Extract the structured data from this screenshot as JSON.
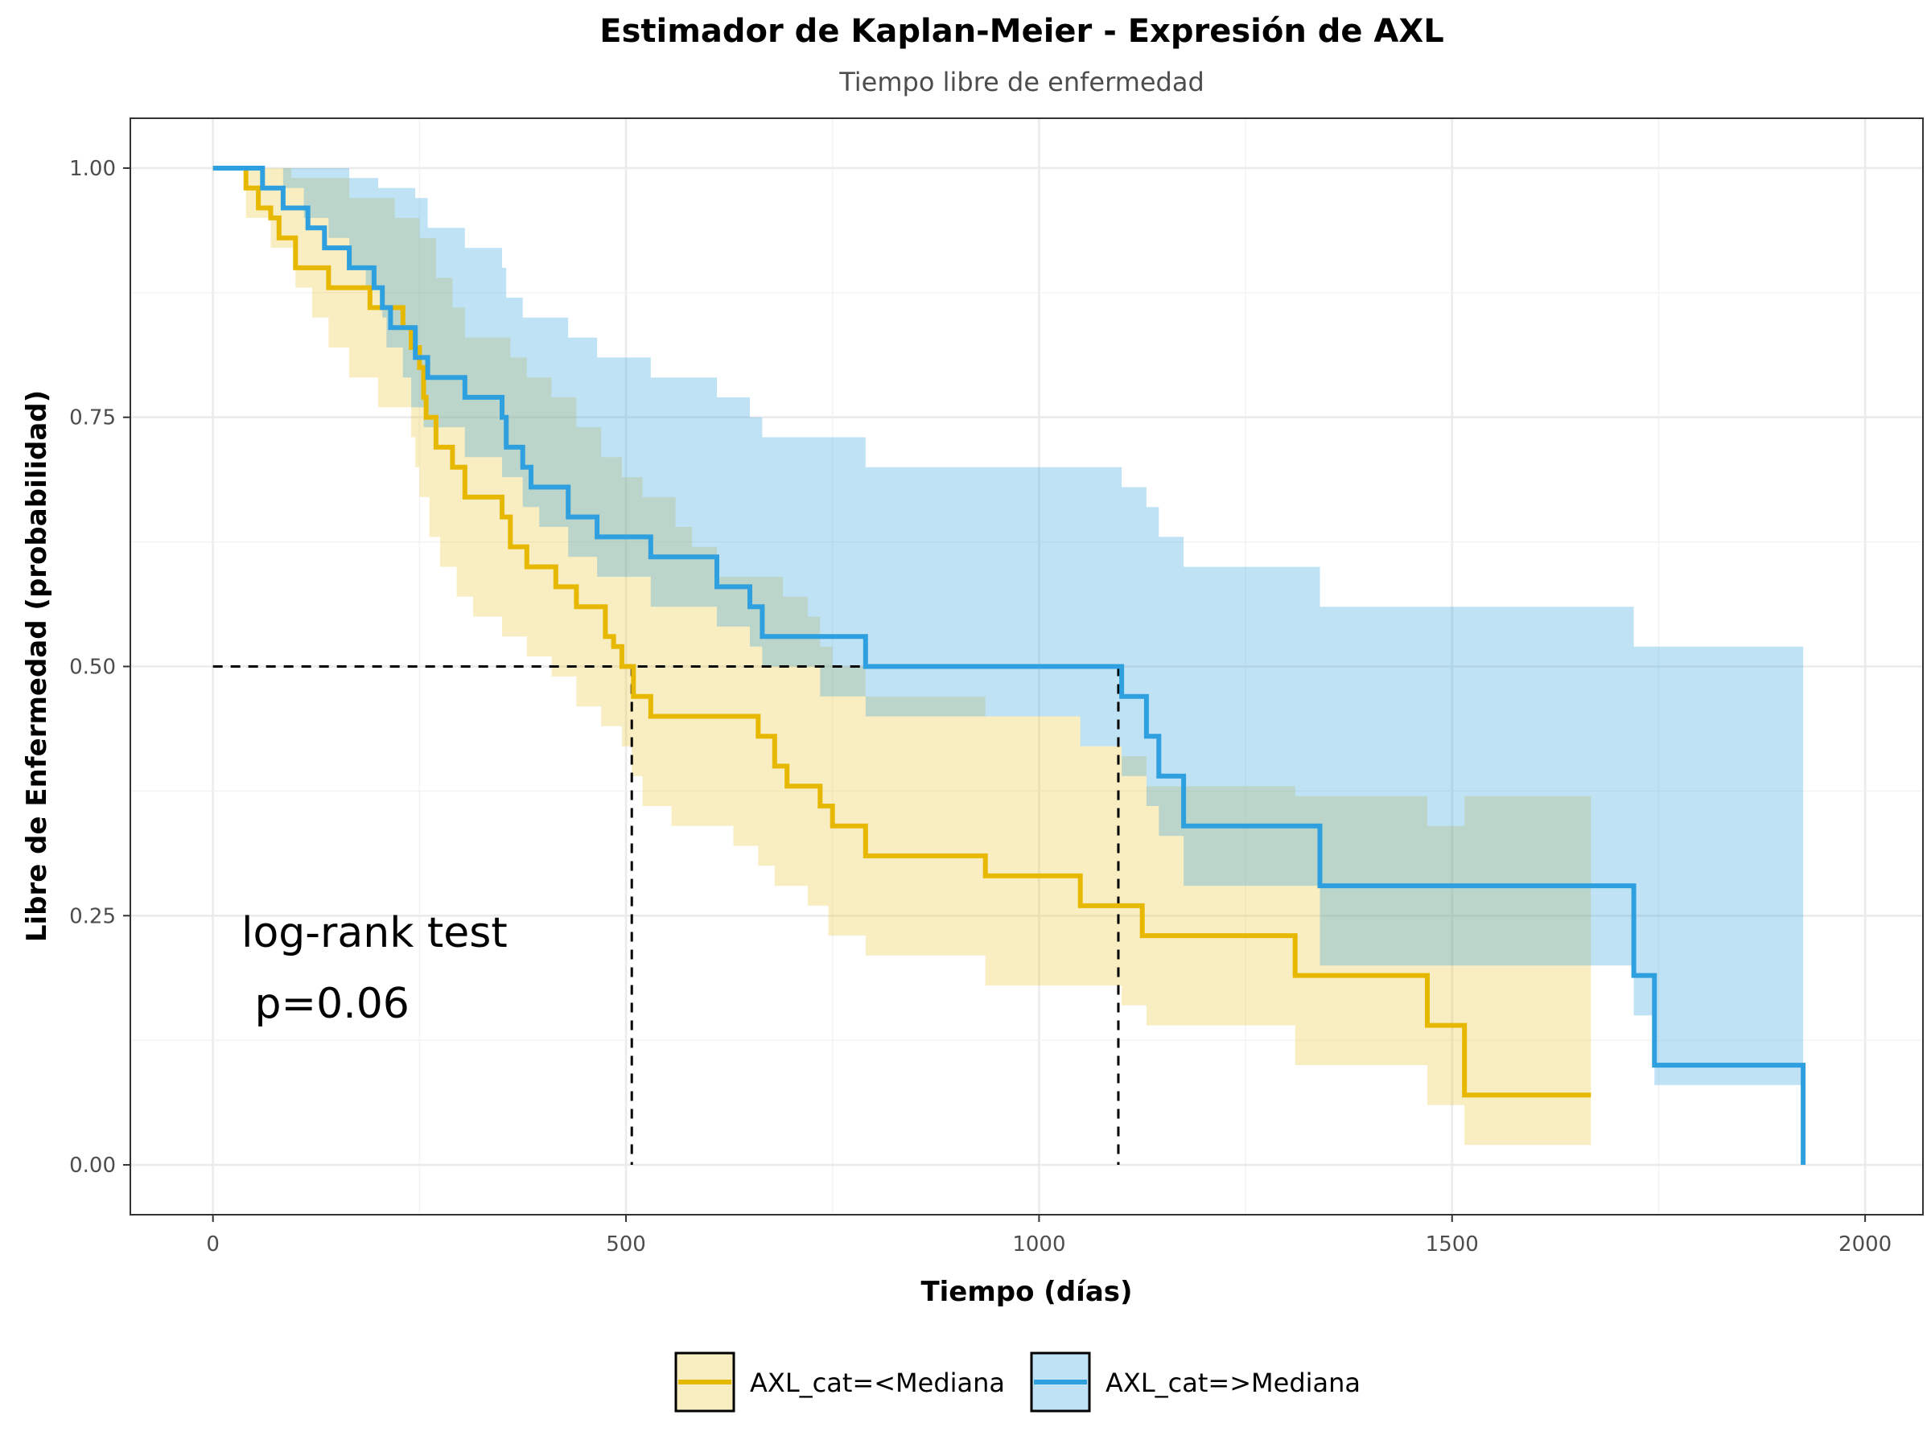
{
  "chart_data": {
    "type": "line",
    "title": "Estimador de Kaplan-Meier - Expresión de AXL",
    "subtitle": "Tiempo libre de enfermedad",
    "xlabel": "Tiempo (días)",
    "ylabel": "Libre de Enfermedad (probabilidad)",
    "xlim": [
      -100,
      2070
    ],
    "ylim": [
      -0.05,
      1.05
    ],
    "xticks": [
      0,
      500,
      1000,
      1500,
      2000
    ],
    "xtick_labels": [
      "0",
      "500",
      "1000",
      "1500",
      "2000"
    ],
    "yticks": [
      0,
      0.25,
      0.5,
      0.75,
      1.0
    ],
    "ytick_labels": [
      "0.00",
      "0.25",
      "0.50",
      "0.75",
      "1.00"
    ],
    "grid": true,
    "legend_position": "bottom",
    "annotation": [
      "log-rank test",
      " p=0.06"
    ],
    "median_lines": [
      {
        "x": 507,
        "y": 0.5
      },
      {
        "x": 1096,
        "y": 0.5
      }
    ],
    "series": [
      {
        "name": "AXL_cat=<Mediana",
        "color": "#E7B800",
        "band_color": "#EAC434",
        "step": [
          [
            0,
            1.0
          ],
          [
            40,
            0.98
          ],
          [
            55,
            0.96
          ],
          [
            70,
            0.95
          ],
          [
            80,
            0.93
          ],
          [
            100,
            0.9
          ],
          [
            140,
            0.88
          ],
          [
            190,
            0.86
          ],
          [
            230,
            0.84
          ],
          [
            240,
            0.82
          ],
          [
            250,
            0.8
          ],
          [
            255,
            0.77
          ],
          [
            258,
            0.75
          ],
          [
            270,
            0.72
          ],
          [
            290,
            0.7
          ],
          [
            305,
            0.67
          ],
          [
            350,
            0.65
          ],
          [
            360,
            0.62
          ],
          [
            380,
            0.6
          ],
          [
            415,
            0.58
          ],
          [
            440,
            0.56
          ],
          [
            475,
            0.53
          ],
          [
            485,
            0.52
          ],
          [
            495,
            0.5
          ],
          [
            509,
            0.47
          ],
          [
            530,
            0.45
          ],
          [
            660,
            0.43
          ],
          [
            680,
            0.4
          ],
          [
            695,
            0.38
          ],
          [
            735,
            0.36
          ],
          [
            750,
            0.34
          ],
          [
            790,
            0.31
          ],
          [
            935,
            0.29
          ],
          [
            1050,
            0.26
          ],
          [
            1100,
            0.26
          ],
          [
            1125,
            0.23
          ],
          [
            1310,
            0.19
          ],
          [
            1470,
            0.14
          ],
          [
            1515,
            0.07
          ],
          [
            1668,
            0.07
          ]
        ],
        "lower": [
          [
            0,
            1.0
          ],
          [
            40,
            0.95
          ],
          [
            70,
            0.92
          ],
          [
            100,
            0.88
          ],
          [
            120,
            0.85
          ],
          [
            140,
            0.82
          ],
          [
            165,
            0.79
          ],
          [
            200,
            0.76
          ],
          [
            240,
            0.73
          ],
          [
            245,
            0.7
          ],
          [
            250,
            0.67
          ],
          [
            262,
            0.63
          ],
          [
            275,
            0.6
          ],
          [
            295,
            0.57
          ],
          [
            315,
            0.55
          ],
          [
            350,
            0.53
          ],
          [
            380,
            0.51
          ],
          [
            410,
            0.49
          ],
          [
            440,
            0.46
          ],
          [
            470,
            0.44
          ],
          [
            495,
            0.42
          ],
          [
            507,
            0.39
          ],
          [
            520,
            0.36
          ],
          [
            555,
            0.34
          ],
          [
            630,
            0.32
          ],
          [
            660,
            0.3
          ],
          [
            680,
            0.28
          ],
          [
            720,
            0.26
          ],
          [
            745,
            0.23
          ],
          [
            790,
            0.21
          ],
          [
            935,
            0.18
          ],
          [
            1100,
            0.16
          ],
          [
            1130,
            0.14
          ],
          [
            1310,
            0.1
          ],
          [
            1470,
            0.06
          ],
          [
            1515,
            0.02
          ],
          [
            1668,
            0.02
          ]
        ],
        "upper": [
          [
            0,
            1.0
          ],
          [
            95,
            0.99
          ],
          [
            165,
            0.97
          ],
          [
            220,
            0.95
          ],
          [
            250,
            0.93
          ],
          [
            270,
            0.89
          ],
          [
            290,
            0.86
          ],
          [
            305,
            0.83
          ],
          [
            360,
            0.81
          ],
          [
            380,
            0.79
          ],
          [
            410,
            0.77
          ],
          [
            440,
            0.74
          ],
          [
            470,
            0.71
          ],
          [
            495,
            0.69
          ],
          [
            520,
            0.67
          ],
          [
            560,
            0.64
          ],
          [
            580,
            0.62
          ],
          [
            610,
            0.59
          ],
          [
            690,
            0.57
          ],
          [
            720,
            0.55
          ],
          [
            735,
            0.52
          ],
          [
            750,
            0.5
          ],
          [
            790,
            0.47
          ],
          [
            935,
            0.45
          ],
          [
            1050,
            0.42
          ],
          [
            1100,
            0.41
          ],
          [
            1130,
            0.38
          ],
          [
            1310,
            0.37
          ],
          [
            1470,
            0.34
          ],
          [
            1515,
            0.37
          ],
          [
            1668,
            0.37
          ]
        ]
      },
      {
        "name": "AXL_cat=>Mediana",
        "color": "#2E9FDF",
        "band_color": "#2E9FDF",
        "step": [
          [
            0,
            1.0
          ],
          [
            60,
            0.98
          ],
          [
            85,
            0.96
          ],
          [
            115,
            0.94
          ],
          [
            135,
            0.92
          ],
          [
            165,
            0.9
          ],
          [
            195,
            0.88
          ],
          [
            205,
            0.86
          ],
          [
            215,
            0.84
          ],
          [
            245,
            0.81
          ],
          [
            260,
            0.79
          ],
          [
            305,
            0.77
          ],
          [
            350,
            0.75
          ],
          [
            355,
            0.72
          ],
          [
            375,
            0.7
          ],
          [
            385,
            0.68
          ],
          [
            430,
            0.65
          ],
          [
            465,
            0.63
          ],
          [
            530,
            0.61
          ],
          [
            610,
            0.58
          ],
          [
            650,
            0.56
          ],
          [
            665,
            0.53
          ],
          [
            790,
            0.5
          ],
          [
            1100,
            0.47
          ],
          [
            1130,
            0.43
          ],
          [
            1145,
            0.39
          ],
          [
            1175,
            0.34
          ],
          [
            1340,
            0.28
          ],
          [
            1720,
            0.19
          ],
          [
            1745,
            0.1
          ],
          [
            1925,
            0.0
          ]
        ],
        "lower": [
          [
            0,
            1.0
          ],
          [
            85,
            0.98
          ],
          [
            110,
            0.95
          ],
          [
            140,
            0.93
          ],
          [
            165,
            0.9
          ],
          [
            185,
            0.88
          ],
          [
            205,
            0.85
          ],
          [
            210,
            0.82
          ],
          [
            230,
            0.79
          ],
          [
            240,
            0.76
          ],
          [
            255,
            0.74
          ],
          [
            305,
            0.71
          ],
          [
            350,
            0.69
          ],
          [
            375,
            0.66
          ],
          [
            395,
            0.64
          ],
          [
            430,
            0.61
          ],
          [
            465,
            0.59
          ],
          [
            530,
            0.56
          ],
          [
            610,
            0.54
          ],
          [
            650,
            0.52
          ],
          [
            665,
            0.5
          ],
          [
            735,
            0.47
          ],
          [
            790,
            0.45
          ],
          [
            1050,
            0.42
          ],
          [
            1100,
            0.39
          ],
          [
            1130,
            0.36
          ],
          [
            1145,
            0.33
          ],
          [
            1175,
            0.28
          ],
          [
            1340,
            0.2
          ],
          [
            1720,
            0.15
          ],
          [
            1745,
            0.08
          ],
          [
            1925,
            0.0
          ]
        ],
        "upper": [
          [
            0,
            1.0
          ],
          [
            85,
            1.0
          ],
          [
            165,
            0.99
          ],
          [
            200,
            0.98
          ],
          [
            245,
            0.97
          ],
          [
            260,
            0.94
          ],
          [
            305,
            0.92
          ],
          [
            350,
            0.9
          ],
          [
            355,
            0.87
          ],
          [
            375,
            0.85
          ],
          [
            430,
            0.83
          ],
          [
            465,
            0.81
          ],
          [
            530,
            0.79
          ],
          [
            610,
            0.77
          ],
          [
            650,
            0.75
          ],
          [
            665,
            0.73
          ],
          [
            790,
            0.7
          ],
          [
            1100,
            0.68
          ],
          [
            1130,
            0.66
          ],
          [
            1145,
            0.63
          ],
          [
            1175,
            0.6
          ],
          [
            1340,
            0.56
          ],
          [
            1720,
            0.52
          ],
          [
            1745,
            0.52
          ],
          [
            1925,
            0.52
          ]
        ]
      }
    ]
  }
}
